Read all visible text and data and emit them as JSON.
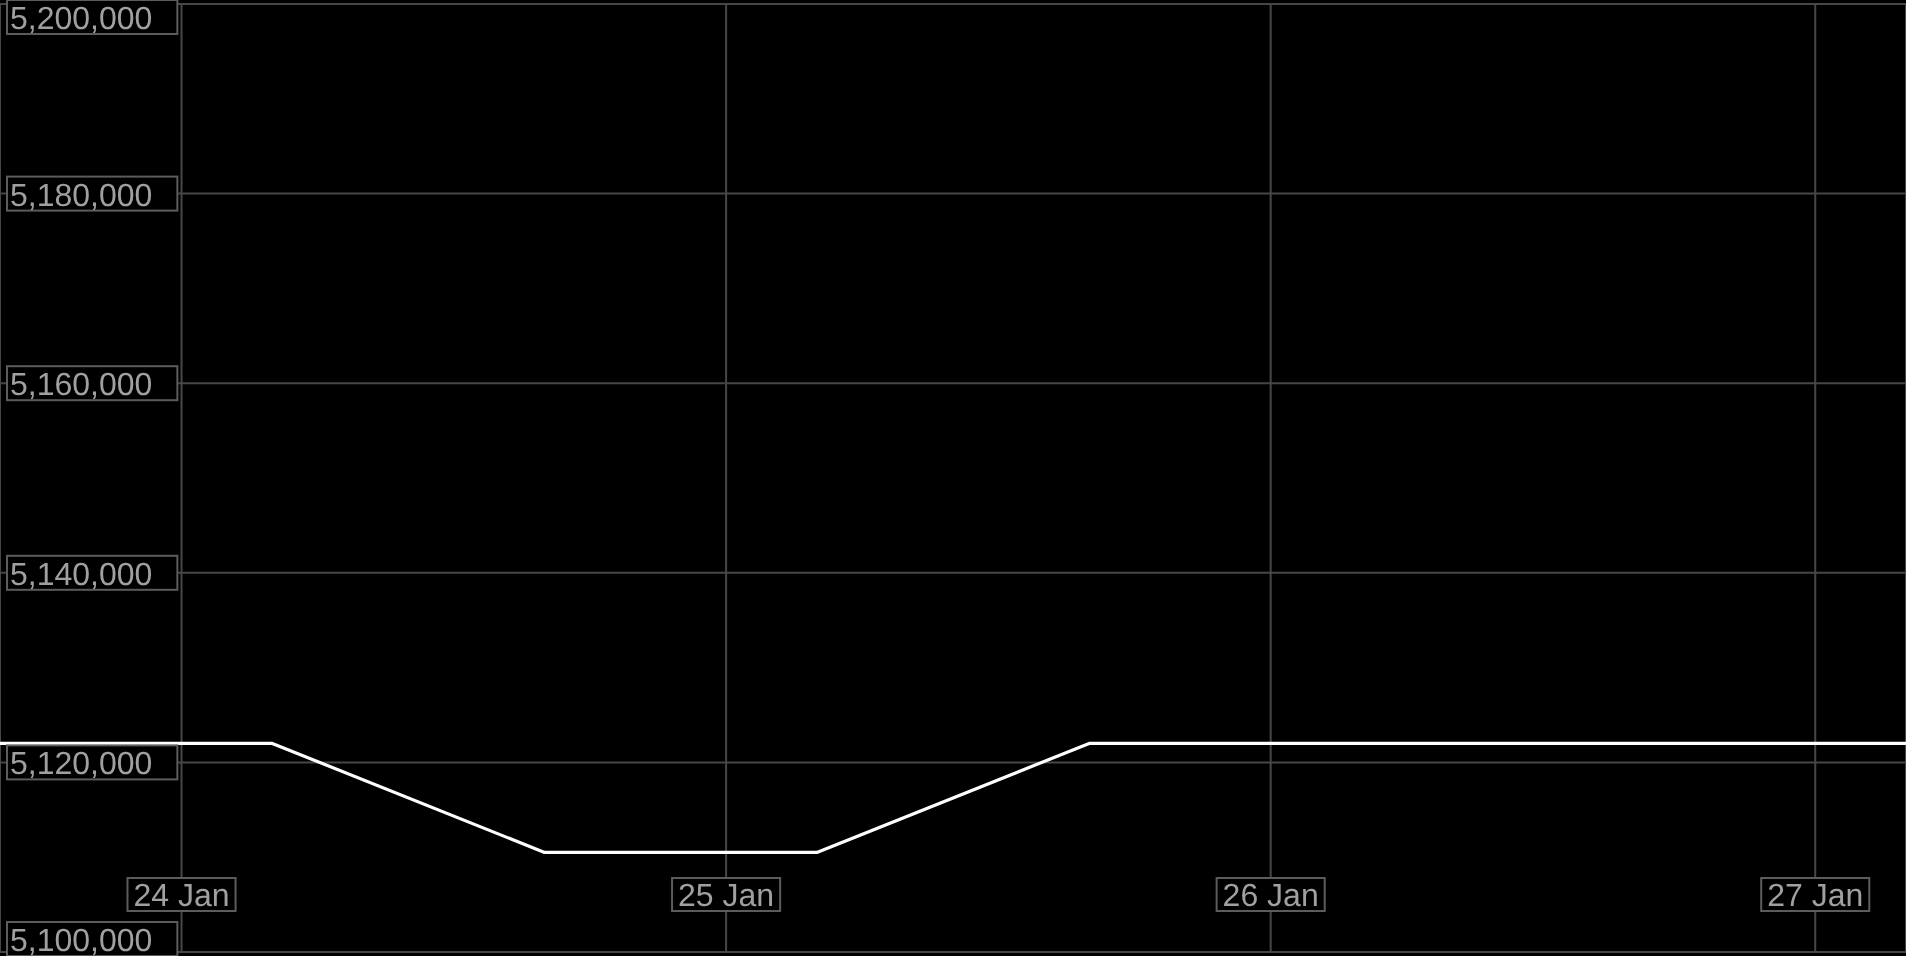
{
  "chart_data": {
    "type": "line",
    "x": [
      "--01-23T16:00",
      "--01-24T04:00",
      "--01-24T16:00",
      "--01-25T04:00",
      "--01-25T16:00",
      "--01-26T04:00",
      "--01-26T16:00",
      "--01-27T04:00"
    ],
    "series": [
      {
        "color": "#ffffff",
        "values": [
          5122000,
          5122000,
          5110500,
          5110500,
          5122000,
          5122000,
          5122000,
          5122000
        ]
      }
    ],
    "xlim": [
      "--01-23T16:00",
      "--01-27T04:00"
    ],
    "xticks": [
      {
        "value": "--01-24",
        "label": "24 Jan"
      },
      {
        "value": "--01-25",
        "label": "25 Jan"
      },
      {
        "value": "--01-26",
        "label": "26 Jan"
      },
      {
        "value": "--01-27",
        "label": "27 Jan"
      }
    ],
    "ylim": [
      5100000,
      5200000
    ],
    "yticks": [
      {
        "value": 5100000,
        "label": "5,100,000"
      },
      {
        "value": 5120000,
        "label": "5,120,000"
      },
      {
        "value": 5140000,
        "label": "5,140,000"
      },
      {
        "value": 5160000,
        "label": "5,160,000"
      },
      {
        "value": 5180000,
        "label": "5,180,000"
      },
      {
        "value": 5200000,
        "label": "5,200,000"
      }
    ],
    "grid": true,
    "marker": "none",
    "line_style": "solid"
  }
}
